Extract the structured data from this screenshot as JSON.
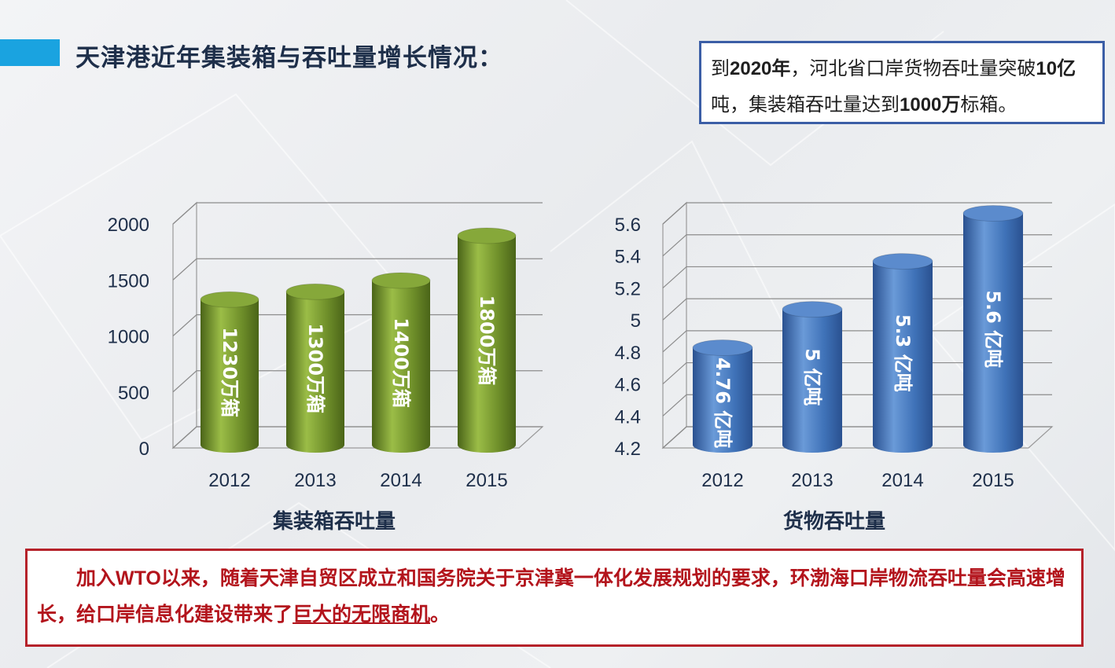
{
  "header": {
    "title": "天津港近年集装箱与吞吐量增长情况："
  },
  "callout": {
    "p1": "到",
    "b1": "2020年",
    "p2": "，河北省口岸货物吞吐量突破",
    "b2": "10亿",
    "p3": "吨，集装箱吞吐量达到",
    "b3": "1000万",
    "p4": "标箱。"
  },
  "footer": {
    "text_main": "加入WTO以来，随着天津自贸区成立和国务院关于京津冀一体化发展规划的要求，环渤海口岸物流吞吐量会高速增长，给口岸信息化建设带来了",
    "text_underlined": "巨大的无限商机",
    "text_end": "。"
  },
  "colors": {
    "title_accent": "#1aa3e0",
    "green_bar": "#6f8f2a",
    "blue_bar": "#3f72b8",
    "footer_border": "#b5222a",
    "footer_text": "#b3141c",
    "callout_border": "#3b5ea6"
  },
  "chart_data": [
    {
      "type": "bar",
      "title": "集装箱吞吐量",
      "categories": [
        "2012",
        "2013",
        "2014",
        "2015"
      ],
      "values": [
        1230,
        1300,
        1400,
        1800
      ],
      "data_labels": [
        "1230万箱",
        "1300万箱",
        "1400万箱",
        "1800万箱"
      ],
      "ylim": [
        0,
        2000
      ],
      "yticks": [
        "0",
        "500",
        "1000",
        "1500",
        "2000"
      ],
      "grid": true,
      "style": "3d-cylinder",
      "color": "#6f8f2a"
    },
    {
      "type": "bar",
      "title": "货物吞吐量",
      "categories": [
        "2012",
        "2013",
        "2014",
        "2015"
      ],
      "values": [
        4.76,
        5,
        5.3,
        5.6
      ],
      "data_labels": [
        "4.76 亿吨",
        "5 亿吨",
        "5.3 亿吨",
        "5.6 亿吨"
      ],
      "ylim": [
        4.2,
        5.6
      ],
      "yticks": [
        "4.2",
        "4.4",
        "4.6",
        "4.8",
        "5",
        "5.2",
        "5.4",
        "5.6"
      ],
      "grid": true,
      "style": "3d-cylinder",
      "color": "#3f72b8"
    }
  ]
}
